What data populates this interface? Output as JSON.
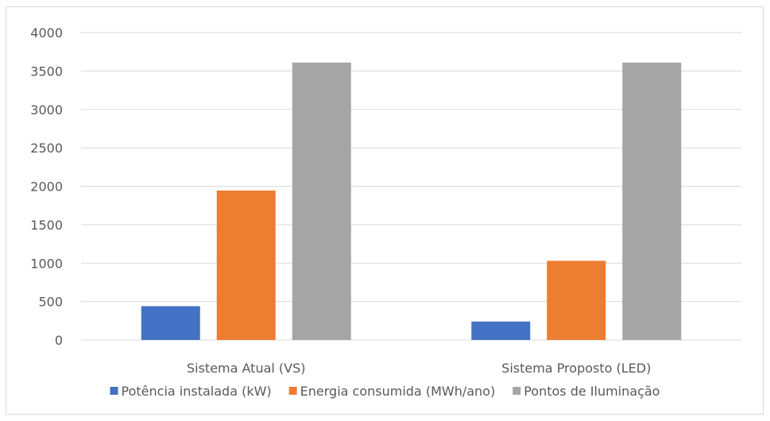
{
  "chart_data": {
    "type": "bar",
    "categories": [
      "Sistema Atual (VS)",
      "Sistema Proposto (LED)"
    ],
    "series": [
      {
        "name": "Potência instalada (kW)",
        "values": [
          440,
          240
        ],
        "color": "#4472c4"
      },
      {
        "name": "Energia consumida (MWh/ano)",
        "values": [
          1945,
          1030
        ],
        "color": "#ed7d31"
      },
      {
        "name": "Pontos de Iluminação",
        "values": [
          3610,
          3610
        ],
        "color": "#a5a5a5"
      }
    ],
    "ylim": [
      0,
      4000
    ],
    "yticks": [
      "0",
      "500",
      "1000",
      "1500",
      "2000",
      "2500",
      "3000",
      "3500",
      "4000"
    ],
    "grid": true,
    "legend_position": "bottom",
    "title": "",
    "xlabel": "",
    "ylabel": ""
  }
}
